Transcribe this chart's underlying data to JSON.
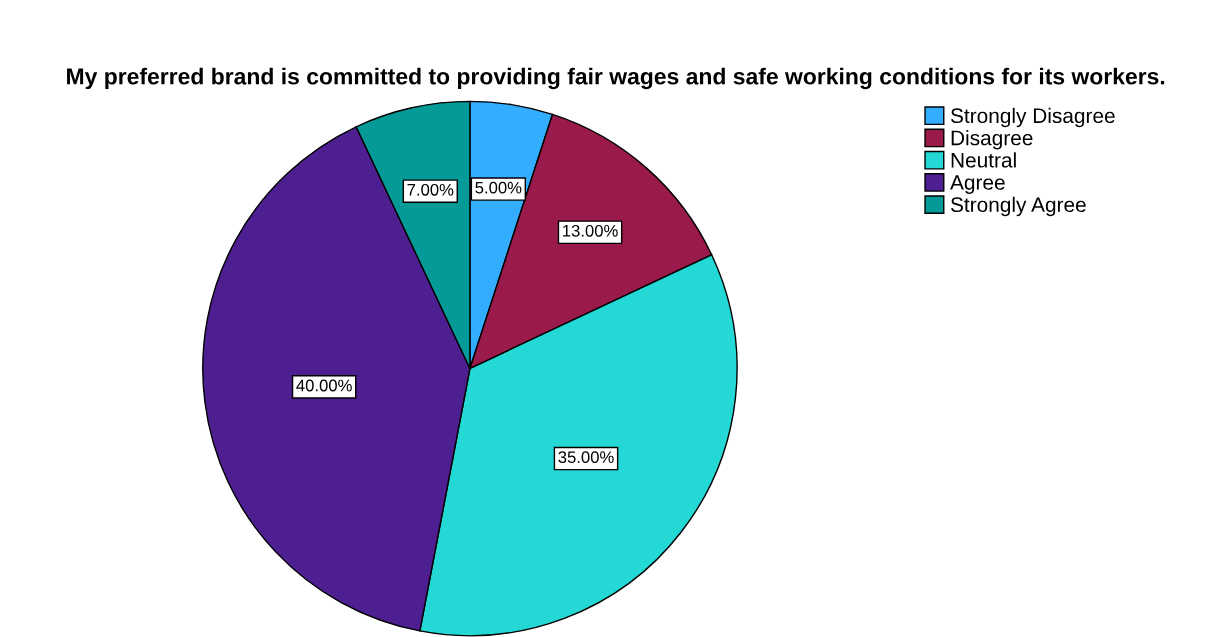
{
  "chart_data": {
    "type": "pie",
    "title": "My preferred brand is committed to providing fair wages and safe working conditions for its workers.",
    "categories": [
      "Strongly Disagree",
      "Disagree",
      "Neutral",
      "Agree",
      "Strongly Agree"
    ],
    "values": [
      5,
      13,
      35,
      40,
      7
    ],
    "colors": [
      "#33adff",
      "#9b1a4c",
      "#23d8d5",
      "#4d1f91",
      "#039a98"
    ],
    "value_labels": [
      "5.00%",
      "13.00%",
      "35.00%",
      "40.00%",
      "7.00%"
    ],
    "legend": "top right"
  }
}
